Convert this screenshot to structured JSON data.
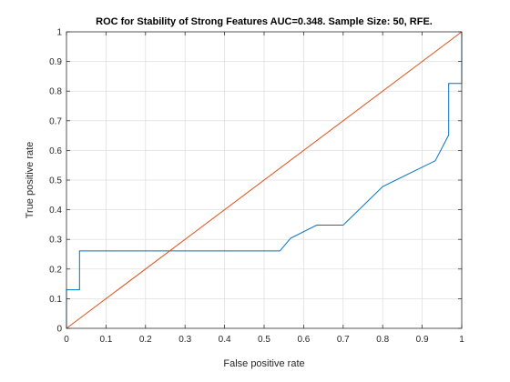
{
  "chart_data": {
    "type": "line",
    "title": "ROC for Stability of Strong Features AUC=0.348. Sample Size: 50, RFE.",
    "xlabel": "False positive rate",
    "ylabel": "True positive rate",
    "xlim": [
      0,
      1
    ],
    "ylim": [
      0,
      1
    ],
    "xticks": [
      "0",
      "0.1",
      "0.2",
      "0.3",
      "0.4",
      "0.5",
      "0.6",
      "0.7",
      "0.8",
      "0.9",
      "1"
    ],
    "yticks": [
      "0",
      "0.1",
      "0.2",
      "0.3",
      "0.4",
      "0.5",
      "0.6",
      "0.7",
      "0.8",
      "0.9",
      "1"
    ],
    "grid": true,
    "series": [
      {
        "color": "#0072BD",
        "x": [
          0,
          0,
          0.033,
          0.033,
          0.54,
          0.567,
          0.633,
          0.7,
          0.8,
          0.867,
          0.933,
          0.967,
          0.967,
          1.0,
          1.0
        ],
        "y": [
          0,
          0.13,
          0.13,
          0.261,
          0.261,
          0.304,
          0.348,
          0.348,
          0.478,
          0.522,
          0.565,
          0.652,
          0.826,
          0.826,
          1.0
        ]
      },
      {
        "color": "#D95319",
        "x": [
          0,
          1
        ],
        "y": [
          0,
          1
        ]
      }
    ]
  }
}
